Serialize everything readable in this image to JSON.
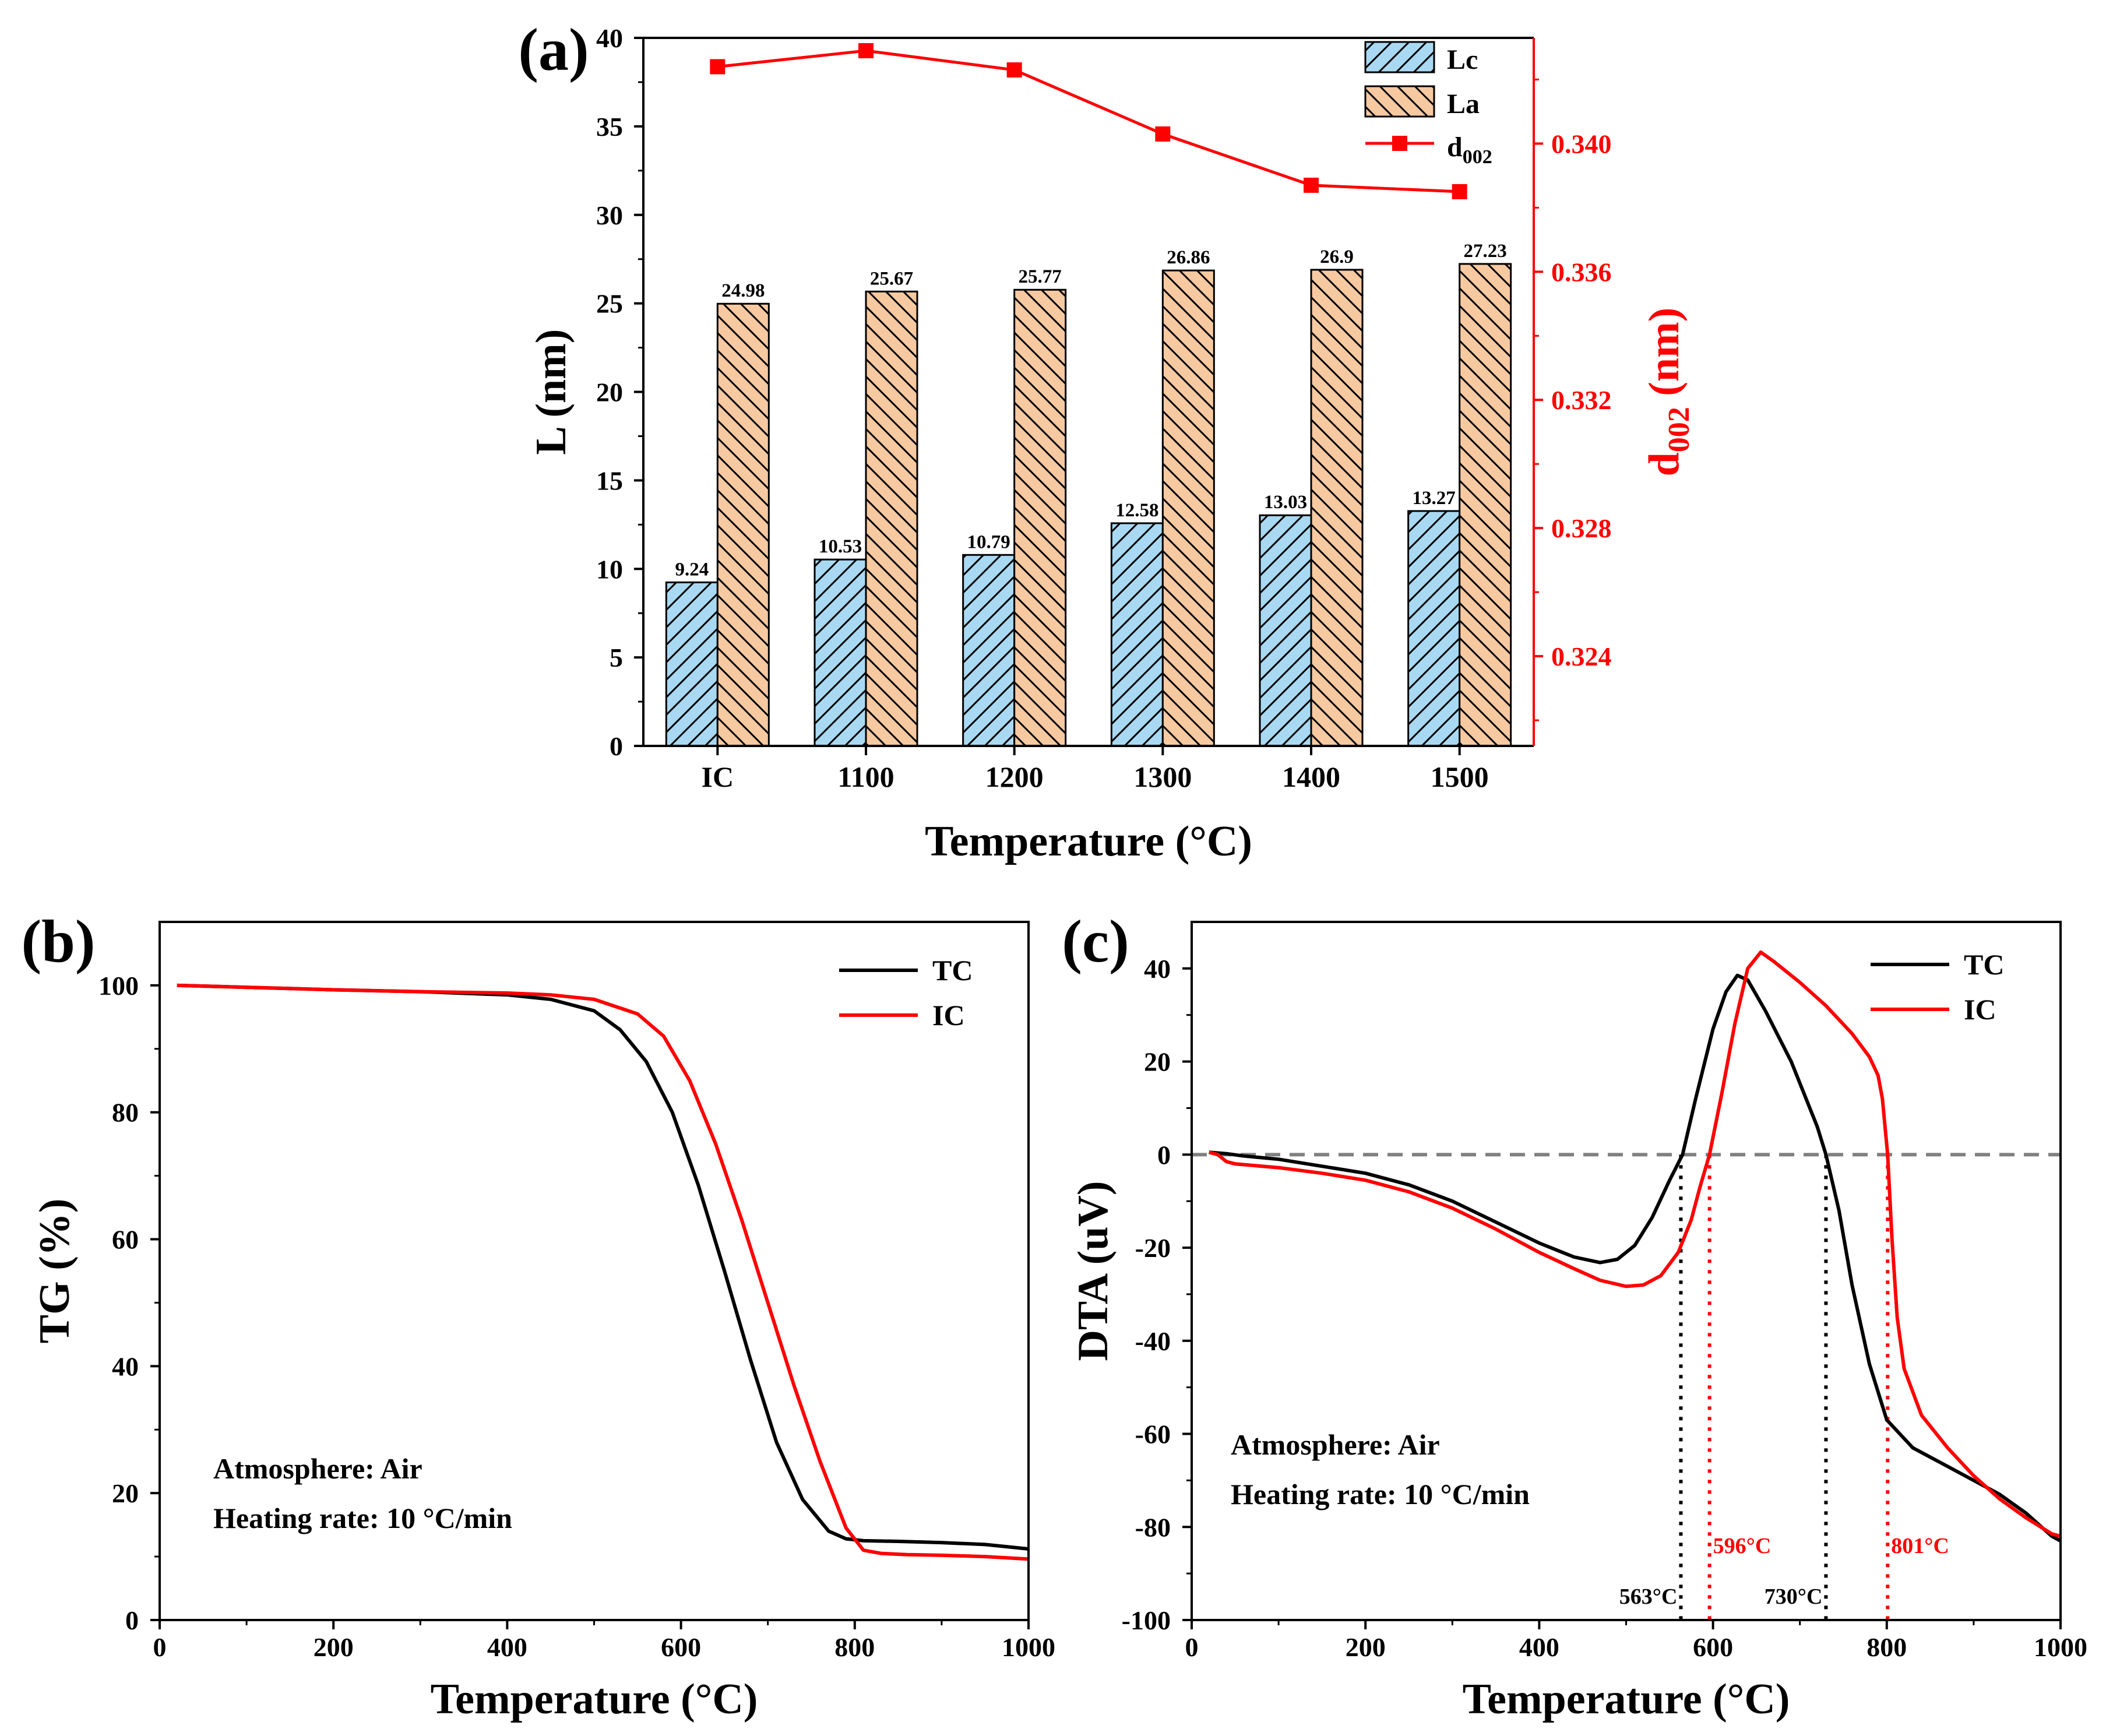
{
  "chart_data": [
    {
      "panel_label": "(a)",
      "type": "bar",
      "categories": [
        "IC",
        "1100",
        "1200",
        "1300",
        "1400",
        "1500"
      ],
      "series": [
        {
          "name": "Lc",
          "values": [
            9.24,
            10.53,
            10.79,
            12.58,
            13.03,
            13.27
          ],
          "labels": [
            "9.24",
            "10.53",
            "10.79",
            "12.58",
            "13.03",
            "13.27"
          ],
          "color": "#a9d9f2",
          "hatch": "//"
        },
        {
          "name": "La",
          "values": [
            24.98,
            25.67,
            25.77,
            26.86,
            26.9,
            27.23
          ],
          "labels": [
            "24.98",
            "25.67",
            "25.77",
            "26.86",
            "26.9",
            "27.23"
          ],
          "color": "#f7c9a1",
          "hatch": "\\\\"
        }
      ],
      "secondary_series": {
        "name_main": "d",
        "name_sub": "002",
        "type": "line",
        "values": [
          0.3424,
          0.3429,
          0.3423,
          0.3403,
          0.3387,
          0.3385
        ],
        "color": "#ff0000",
        "marker": "square"
      },
      "xlabel": "Temperature (°C)",
      "ylabel": "L (nm)",
      "ylim": [
        0,
        40
      ],
      "yticks": [
        "0",
        "5",
        "10",
        "15",
        "20",
        "25",
        "30",
        "35",
        "40"
      ],
      "y2label_main": "d",
      "y2label_sub": "002",
      "y2label_unit": " (nm)",
      "y2lim": [
        0.3212,
        0.3433
      ],
      "y2ticks": [
        "0.324",
        "0.328",
        "0.332",
        "0.336",
        "0.340"
      ],
      "legend_position": "top-right"
    },
    {
      "panel_label": "(b)",
      "type": "line",
      "xlabel": "Temperature (°C)",
      "ylabel": "TG (%)",
      "xlim": [
        0,
        1000
      ],
      "ylim": [
        0,
        110
      ],
      "xticks": [
        "0",
        "200",
        "400",
        "600",
        "800",
        "1000"
      ],
      "yticks": [
        "0",
        "20",
        "40",
        "60",
        "80",
        "100"
      ],
      "series": [
        {
          "name": "TC",
          "color": "#000000",
          "x": [
            20,
            100,
            200,
            300,
            400,
            450,
            500,
            530,
            560,
            590,
            620,
            650,
            680,
            710,
            740,
            770,
            790,
            810,
            850,
            900,
            950,
            1000
          ],
          "y": [
            100,
            99.7,
            99.3,
            99.0,
            98.5,
            97.8,
            96.0,
            93.0,
            88.0,
            80.0,
            68.5,
            55.0,
            41.0,
            28.0,
            19.0,
            14.0,
            12.8,
            12.5,
            12.4,
            12.2,
            11.9,
            11.2
          ]
        },
        {
          "name": "IC",
          "color": "#ff0000",
          "x": [
            20,
            100,
            200,
            300,
            400,
            450,
            500,
            550,
            580,
            610,
            640,
            670,
            700,
            730,
            760,
            790,
            810,
            830,
            860,
            900,
            950,
            1000
          ],
          "y": [
            100,
            99.7,
            99.3,
            99.0,
            98.8,
            98.5,
            97.8,
            95.5,
            92.0,
            85.0,
            75.0,
            63.0,
            50.0,
            37.0,
            25.0,
            14.5,
            11.0,
            10.5,
            10.3,
            10.2,
            10.0,
            9.6
          ]
        }
      ],
      "annotation_lines": [
        "Atmosphere:  Air",
        "Heating rate: 10 °C/min"
      ],
      "legend_position": "top-right"
    },
    {
      "panel_label": "(c)",
      "type": "line",
      "xlabel": "Temperature (°C)",
      "ylabel": "DTA (uV)",
      "xlim": [
        0,
        1000
      ],
      "ylim": [
        -100,
        50
      ],
      "xticks": [
        "0",
        "200",
        "400",
        "600",
        "800",
        "1000"
      ],
      "yticks": [
        "-100",
        "-80",
        "-60",
        "-40",
        "-20",
        "0",
        "20",
        "40"
      ],
      "baseline": 0,
      "series": [
        {
          "name": "TC",
          "color": "#000000",
          "x": [
            20,
            40,
            60,
            100,
            150,
            200,
            250,
            300,
            350,
            400,
            440,
            470,
            490,
            510,
            530,
            550,
            565,
            580,
            600,
            615,
            628,
            640,
            660,
            690,
            720,
            730,
            745,
            760,
            780,
            800,
            830,
            870,
            900,
            930,
            960,
            990,
            1000
          ],
          "y": [
            0.5,
            0.2,
            -0.3,
            -1.0,
            -2.5,
            -4.0,
            -6.5,
            -10.0,
            -14.5,
            -19.0,
            -22.0,
            -23.2,
            -22.5,
            -19.5,
            -13.5,
            -5.5,
            0,
            12.0,
            27.0,
            35.0,
            38.5,
            37.5,
            31.0,
            20.0,
            6.0,
            0,
            -12.0,
            -28.0,
            -45.0,
            -57.0,
            -63.0,
            -67.0,
            -70.0,
            -73.0,
            -77.0,
            -82.0,
            -83.0
          ]
        },
        {
          "name": "IC",
          "color": "#ff0000",
          "x": [
            20,
            30,
            40,
            50,
            100,
            150,
            200,
            250,
            300,
            350,
            400,
            440,
            470,
            500,
            520,
            540,
            560,
            575,
            585,
            596,
            610,
            625,
            640,
            655,
            670,
            700,
            730,
            760,
            780,
            790,
            795,
            801,
            806,
            812,
            820,
            840,
            870,
            900,
            930,
            960,
            990,
            1000
          ],
          "y": [
            0.5,
            0.0,
            -1.5,
            -2.0,
            -2.8,
            -4.0,
            -5.5,
            -8.0,
            -11.5,
            -16.0,
            -21.0,
            -24.5,
            -27.0,
            -28.3,
            -28.0,
            -26.0,
            -21.0,
            -14.0,
            -7.0,
            0,
            13.0,
            28.0,
            40.0,
            43.5,
            41.5,
            37.0,
            32.0,
            26.0,
            21.0,
            17.0,
            12.0,
            0,
            -18.0,
            -35.0,
            -46.0,
            -56.0,
            -63.0,
            -69.0,
            -74.0,
            -78.0,
            -81.5,
            -82.0
          ]
        }
      ],
      "vlines": [
        {
          "x": 563,
          "label": "563°C",
          "color": "#000000"
        },
        {
          "x": 596,
          "label": "596°C",
          "color": "#ff0000"
        },
        {
          "x": 730,
          "label": "730°C",
          "color": "#000000"
        },
        {
          "x": 801,
          "label": "801°C",
          "color": "#ff0000"
        }
      ],
      "annotation_lines": [
        "Atmosphere:  Air",
        "Heating rate: 10 °C/min"
      ],
      "legend_position": "top-right"
    }
  ]
}
